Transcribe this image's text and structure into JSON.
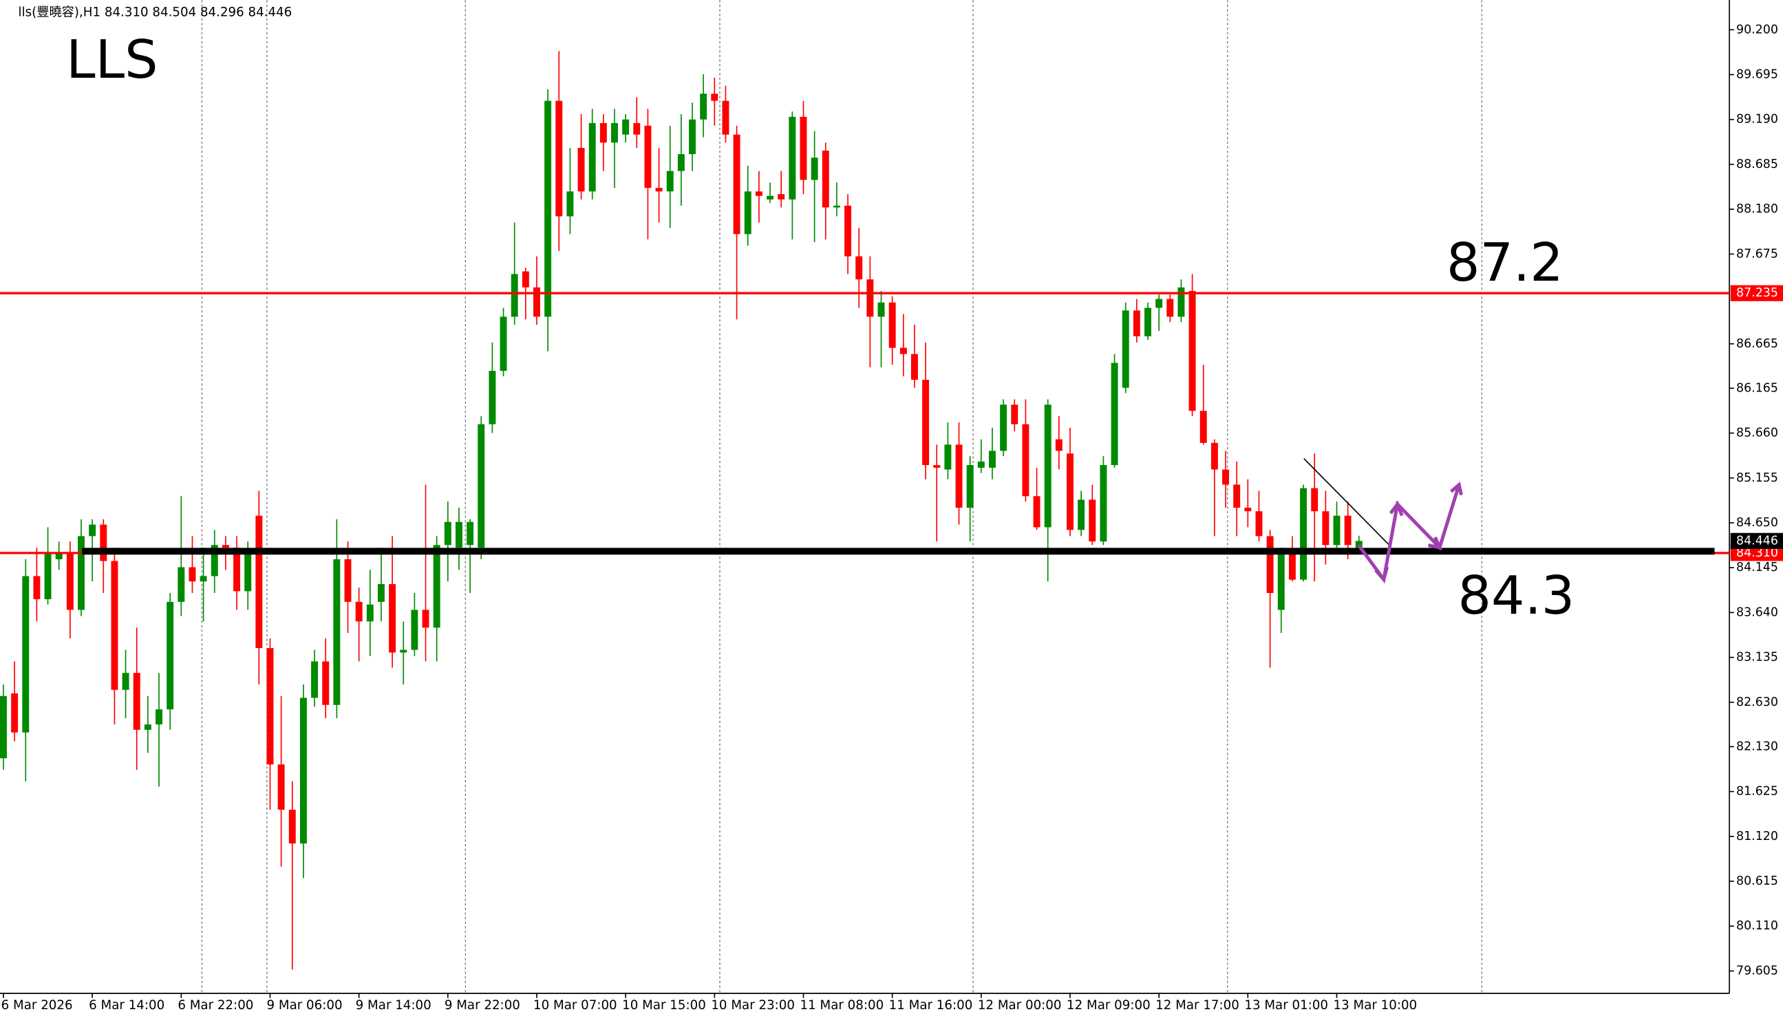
{
  "chart_data": {
    "type": "candlestick",
    "header": "lls(豐曉容),H1  84.310 84.504 84.296 84.446",
    "title": "LLS",
    "annotations": [
      "87.2",
      "84.3"
    ],
    "up_color": "#008a00",
    "down_color": "#ff0000",
    "categories": [
      "6 Mar 2026",
      null,
      null,
      null,
      null,
      null,
      null,
      null,
      "6 Mar 14:00",
      null,
      null,
      null,
      null,
      null,
      null,
      null,
      "6 Mar 22:00",
      null,
      null,
      null,
      null,
      null,
      null,
      null,
      "9 Mar 06:00",
      null,
      null,
      null,
      null,
      null,
      null,
      null,
      "9 Mar 14:00",
      null,
      null,
      null,
      null,
      null,
      null,
      null,
      "9 Mar 22:00",
      null,
      null,
      null,
      null,
      null,
      null,
      null,
      "10 Mar 07:00",
      null,
      null,
      null,
      null,
      null,
      null,
      null,
      "10 Mar 15:00",
      null,
      null,
      null,
      null,
      null,
      null,
      null,
      "10 Mar 23:00",
      null,
      null,
      null,
      null,
      null,
      null,
      null,
      "11 Mar 08:00",
      null,
      null,
      null,
      null,
      null,
      null,
      null,
      "11 Mar 16:00",
      null,
      null,
      null,
      null,
      null,
      null,
      null,
      "12 Mar 00:00",
      null,
      null,
      null,
      null,
      null,
      null,
      null,
      "12 Mar 09:00",
      null,
      null,
      null,
      null,
      null,
      null,
      null,
      "12 Mar 17:00",
      null,
      null,
      null,
      null,
      null,
      null,
      null,
      "13 Mar 01:00",
      null,
      null,
      null,
      null,
      null,
      null,
      null,
      "13 Mar 10:00",
      null,
      null
    ],
    "open": [
      82.0,
      82.73,
      82.29,
      84.05,
      83.79,
      84.24,
      84.31,
      83.67,
      84.5,
      84.63,
      84.22,
      82.77,
      82.96,
      82.32,
      82.38,
      82.55,
      83.76,
      84.15,
      83.99,
      84.05,
      84.4,
      84.37,
      83.88,
      84.73,
      83.24,
      81.93,
      81.42,
      81.04,
      82.68,
      83.09,
      82.6,
      84.24,
      83.76,
      83.54,
      83.76,
      83.96,
      83.19,
      83.22,
      83.67,
      83.47,
      84.4,
      84.37,
      84.4,
      84.37,
      85.76,
      86.36,
      86.97,
      87.48,
      87.3,
      86.97,
      89.4,
      88.1,
      88.87,
      88.38,
      89.15,
      88.93,
      89.02,
      89.15,
      89.12,
      88.42,
      88.38,
      88.61,
      88.8,
      89.19,
      89.48,
      89.4,
      89.02,
      87.9,
      88.38,
      88.29,
      88.35,
      88.29,
      89.22,
      88.51,
      88.84,
      88.2,
      88.22,
      87.65,
      87.39,
      86.97,
      87.13,
      86.62,
      86.55,
      86.26,
      85.3,
      85.25,
      85.53,
      84.82,
      85.27,
      85.27,
      85.46,
      85.98,
      85.76,
      84.95,
      84.6,
      85.59,
      85.43,
      84.57,
      84.91,
      84.44,
      85.3,
      86.17,
      87.04,
      86.75,
      87.07,
      87.17,
      86.97,
      87.26,
      85.91,
      85.55,
      85.25,
      85.08,
      84.82,
      84.78,
      84.5,
      83.67,
      84.31,
      84.01,
      85.04,
      84.78,
      84.4,
      84.73,
      84.31
    ],
    "high": [
      82.83,
      83.09,
      84.24,
      84.37,
      84.6,
      84.44,
      84.44,
      84.69,
      84.69,
      84.69,
      84.37,
      83.22,
      83.47,
      82.7,
      82.96,
      83.86,
      84.95,
      84.5,
      84.37,
      84.57,
      84.5,
      84.5,
      84.44,
      85.01,
      83.35,
      82.7,
      81.74,
      82.83,
      83.22,
      83.35,
      84.69,
      84.44,
      83.92,
      84.12,
      84.37,
      84.5,
      83.54,
      83.86,
      85.08,
      84.5,
      84.89,
      84.82,
      84.69,
      85.85,
      86.68,
      87.07,
      88.03,
      87.52,
      87.65,
      89.53,
      89.96,
      88.87,
      89.25,
      89.31,
      89.25,
      89.31,
      89.25,
      89.44,
      89.31,
      88.87,
      89.12,
      89.25,
      89.38,
      89.7,
      89.66,
      89.57,
      89.12,
      88.67,
      88.61,
      88.48,
      88.61,
      89.28,
      89.4,
      89.06,
      88.93,
      88.48,
      88.35,
      87.97,
      87.65,
      87.26,
      87.2,
      87.0,
      86.88,
      86.68,
      85.53,
      85.78,
      85.78,
      85.4,
      85.59,
      85.72,
      86.04,
      86.04,
      86.04,
      85.27,
      86.04,
      85.85,
      85.72,
      85.01,
      85.08,
      85.4,
      86.55,
      87.13,
      87.17,
      87.13,
      87.22,
      87.22,
      87.39,
      87.45,
      86.43,
      85.59,
      85.46,
      85.34,
      85.14,
      85.01,
      84.57,
      84.37,
      84.5,
      85.08,
      85.43,
      85.01,
      84.89,
      84.89,
      84.504
    ],
    "low": [
      81.87,
      82.19,
      81.74,
      83.54,
      83.73,
      84.12,
      83.35,
      83.6,
      83.99,
      83.86,
      82.38,
      82.45,
      81.87,
      82.06,
      81.68,
      82.32,
      83.6,
      83.86,
      83.54,
      83.86,
      84.12,
      83.67,
      83.67,
      82.83,
      81.42,
      80.78,
      79.62,
      80.65,
      82.58,
      82.45,
      82.45,
      83.41,
      83.09,
      83.15,
      83.54,
      83.02,
      82.83,
      83.15,
      83.09,
      83.09,
      83.99,
      84.12,
      83.86,
      84.24,
      85.66,
      86.3,
      86.88,
      86.94,
      86.88,
      86.58,
      87.71,
      87.9,
      88.29,
      88.29,
      88.61,
      88.42,
      88.93,
      88.87,
      87.84,
      88.03,
      87.97,
      88.22,
      88.61,
      88.99,
      89.12,
      88.93,
      86.94,
      87.77,
      88.03,
      88.25,
      88.2,
      87.84,
      88.35,
      87.81,
      87.84,
      88.1,
      87.45,
      87.07,
      86.4,
      86.4,
      86.43,
      86.3,
      86.17,
      85.14,
      84.44,
      85.14,
      84.63,
      84.44,
      85.21,
      85.14,
      85.4,
      85.68,
      84.89,
      84.57,
      83.99,
      85.25,
      84.5,
      84.5,
      84.4,
      84.4,
      85.27,
      86.11,
      86.68,
      86.71,
      86.81,
      86.91,
      86.91,
      85.85,
      85.53,
      84.5,
      84.82,
      84.5,
      84.6,
      84.44,
      83.02,
      83.41,
      83.99,
      83.99,
      83.99,
      84.18,
      84.37,
      84.24,
      84.296
    ],
    "close": [
      82.7,
      82.29,
      84.05,
      83.79,
      84.31,
      84.31,
      83.67,
      84.5,
      84.63,
      84.22,
      82.77,
      82.96,
      82.32,
      82.38,
      82.55,
      83.76,
      84.15,
      83.99,
      84.05,
      84.4,
      84.37,
      83.88,
      84.35,
      83.24,
      81.93,
      81.42,
      81.04,
      82.68,
      83.09,
      82.6,
      84.24,
      83.76,
      83.54,
      83.73,
      83.96,
      83.19,
      83.22,
      83.67,
      83.47,
      84.4,
      84.66,
      84.66,
      84.66,
      85.76,
      86.36,
      86.97,
      87.45,
      87.3,
      86.97,
      89.4,
      88.1,
      88.38,
      88.38,
      89.15,
      88.93,
      89.15,
      89.19,
      89.02,
      88.42,
      88.38,
      88.61,
      88.8,
      89.19,
      89.48,
      89.4,
      89.02,
      87.9,
      88.38,
      88.33,
      88.33,
      88.29,
      89.22,
      88.51,
      88.76,
      88.2,
      88.22,
      87.65,
      87.39,
      86.97,
      87.13,
      86.62,
      86.55,
      86.26,
      85.3,
      85.27,
      85.53,
      84.82,
      85.3,
      85.34,
      85.46,
      85.98,
      85.76,
      84.95,
      84.6,
      85.98,
      85.46,
      84.57,
      84.91,
      84.44,
      85.3,
      86.45,
      87.04,
      86.75,
      87.07,
      87.17,
      86.97,
      87.3,
      85.91,
      85.55,
      85.25,
      85.08,
      84.82,
      84.78,
      84.5,
      83.86,
      84.31,
      84.01,
      85.04,
      84.78,
      84.4,
      84.73,
      84.4,
      84.446
    ],
    "ylim": [
      79.353,
      90.534
    ],
    "yticks": [
      {
        "value": 90.2,
        "label": "90.200"
      },
      89.695,
      {
        "value": 89.19,
        "label": "89.190"
      },
      88.685,
      {
        "value": 88.18,
        "label": "88.180"
      },
      87.675,
      86.665,
      86.165,
      {
        "value": 85.66,
        "label": "85.660"
      },
      85.155,
      {
        "value": 84.65,
        "label": "84.650"
      },
      84.145,
      {
        "value": 83.64,
        "label": "83.640"
      },
      83.135,
      {
        "value": 82.63,
        "label": "82.630"
      },
      {
        "value": 82.13,
        "label": "82.130"
      },
      81.625,
      {
        "value": 81.12,
        "label": "81.120"
      },
      80.615,
      {
        "value": 80.11,
        "label": "80.110"
      },
      79.605
    ],
    "levels": [
      {
        "value": 87.235,
        "label": "87.235",
        "color": "#ff0000"
      },
      {
        "value": 84.31,
        "label": "84.310",
        "color": "#ff0000"
      }
    ],
    "current_price": {
      "value": 84.446,
      "label": "84.446"
    },
    "support_line": 84.33
  }
}
